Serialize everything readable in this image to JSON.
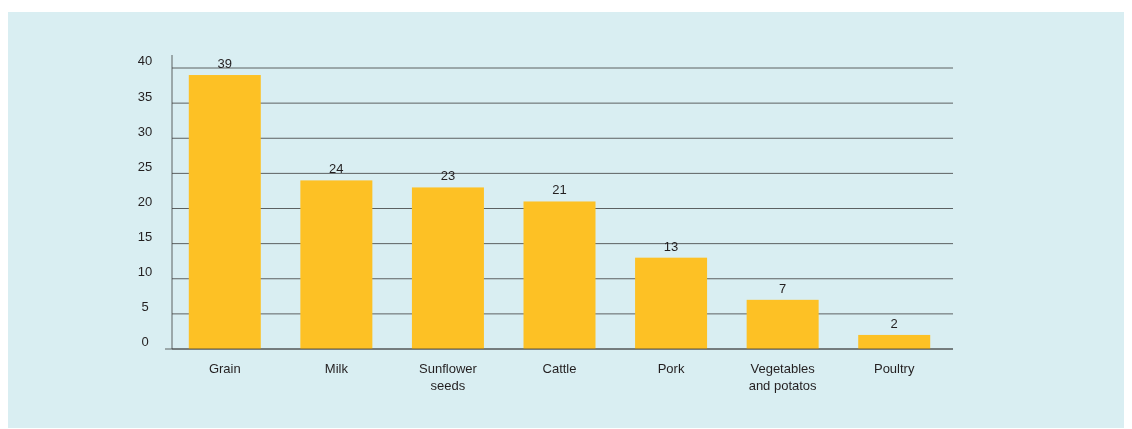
{
  "chart_data": {
    "type": "bar",
    "categories": [
      "Grain",
      "Milk",
      "Sunflower seeds",
      "Cattle",
      "Pork",
      "Vegetables and potatos",
      "Poultry"
    ],
    "values": [
      39,
      24,
      23,
      21,
      13,
      7,
      2
    ],
    "color": "#fdc125",
    "ylim": [
      0,
      40
    ],
    "yticks": [
      0,
      5,
      10,
      15,
      20,
      25,
      30,
      35,
      40
    ],
    "grid": "y",
    "data_labels": true
  }
}
